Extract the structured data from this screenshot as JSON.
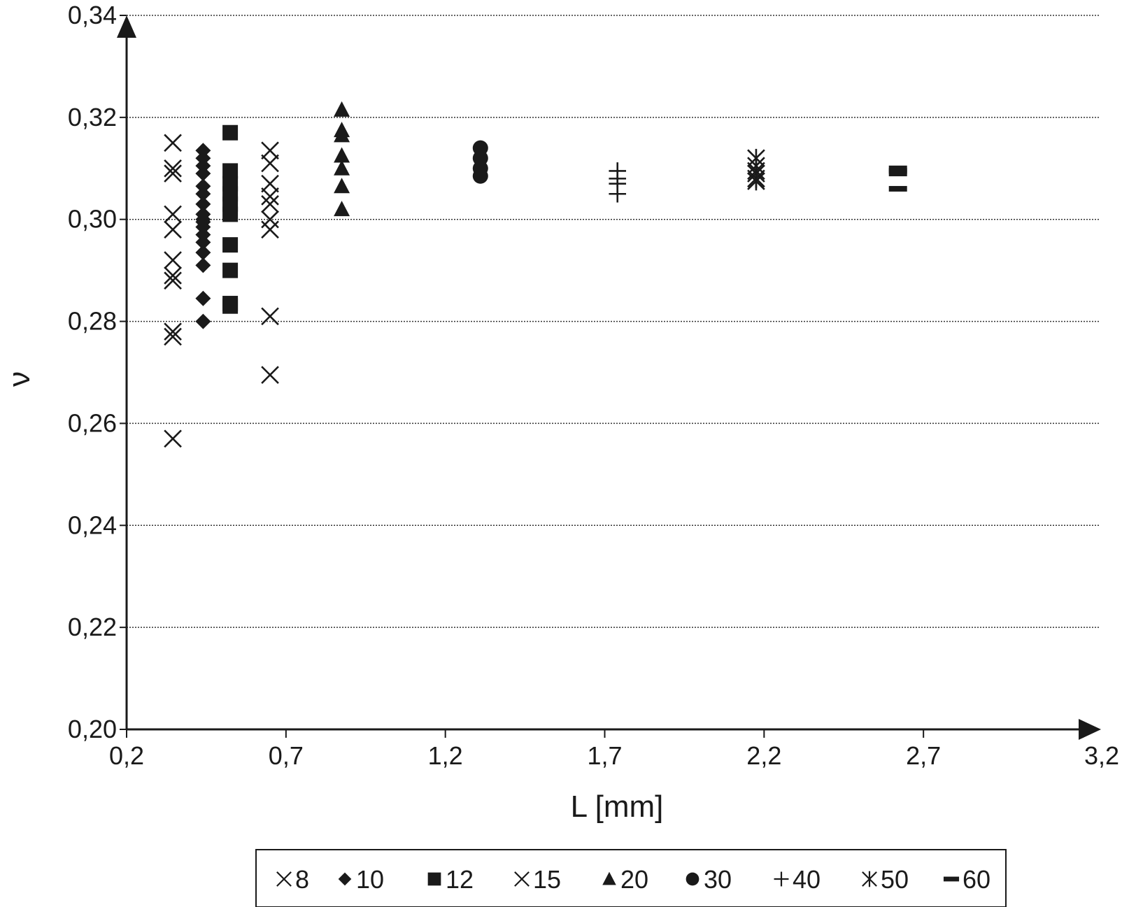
{
  "chart_data": {
    "type": "scatter",
    "title": "",
    "xlabel": "L [mm]",
    "ylabel": "ν",
    "xlim": [
      0.2,
      3.2
    ],
    "ylim": [
      0.2,
      0.34
    ],
    "x_ticks": [
      0.2,
      0.7,
      1.2,
      1.7,
      2.2,
      2.7,
      3.2
    ],
    "x_tick_labels": [
      "0,2",
      "0,7",
      "1,2",
      "1,7",
      "2,2",
      "2,7",
      "3,2"
    ],
    "y_ticks": [
      0.2,
      0.22,
      0.24,
      0.26,
      0.28,
      0.3,
      0.32,
      0.34
    ],
    "y_tick_labels": [
      "0,20",
      "0,22",
      "0,24",
      "0,26",
      "0,28",
      "0,30",
      "0,32",
      "0,34"
    ],
    "grid": "horizontal dotted lines at y ticks",
    "legend_position": "bottom",
    "series": [
      {
        "name": "8",
        "marker": "x",
        "x": [
          0.345,
          0.345,
          0.345,
          0.345,
          0.345,
          0.345,
          0.345,
          0.345,
          0.345,
          0.345,
          0.345
        ],
        "y": [
          0.315,
          0.31,
          0.309,
          0.301,
          0.298,
          0.292,
          0.289,
          0.288,
          0.278,
          0.277,
          0.257
        ]
      },
      {
        "name": "10",
        "marker": "diamond",
        "x": [
          0.44,
          0.44,
          0.44,
          0.44,
          0.44,
          0.44,
          0.44,
          0.44,
          0.44,
          0.44,
          0.44,
          0.44,
          0.44,
          0.44,
          0.44,
          0.44,
          0.44
        ],
        "y": [
          0.3135,
          0.312,
          0.3105,
          0.309,
          0.3065,
          0.305,
          0.303,
          0.301,
          0.3,
          0.2985,
          0.297,
          0.2955,
          0.2935,
          0.291,
          0.2845,
          0.28,
          0.2995
        ]
      },
      {
        "name": "12",
        "marker": "square",
        "x": [
          0.525,
          0.525,
          0.525,
          0.525,
          0.525,
          0.525,
          0.525,
          0.525,
          0.525,
          0.525
        ],
        "y": [
          0.317,
          0.3095,
          0.307,
          0.305,
          0.303,
          0.301,
          0.295,
          0.29,
          0.2835,
          0.283
        ]
      },
      {
        "name": "15",
        "marker": "x",
        "x": [
          0.65,
          0.65,
          0.65,
          0.65,
          0.65,
          0.65,
          0.65,
          0.65,
          0.65
        ],
        "y": [
          0.3135,
          0.311,
          0.307,
          0.3045,
          0.303,
          0.3,
          0.298,
          0.281,
          0.2695
        ]
      },
      {
        "name": "20",
        "marker": "triangle",
        "x": [
          0.875,
          0.875,
          0.875,
          0.875,
          0.875,
          0.875,
          0.875
        ],
        "y": [
          0.3215,
          0.3175,
          0.3165,
          0.3125,
          0.31,
          0.3065,
          0.302
        ]
      },
      {
        "name": "30",
        "marker": "circle",
        "x": [
          1.31,
          1.31,
          1.31,
          1.31
        ],
        "y": [
          0.314,
          0.312,
          0.31,
          0.3085
        ]
      },
      {
        "name": "40",
        "marker": "plus",
        "x": [
          1.74,
          1.74,
          1.74,
          1.74
        ],
        "y": [
          0.3095,
          0.308,
          0.307,
          0.305
        ]
      },
      {
        "name": "50",
        "marker": "asterisk",
        "x": [
          2.175,
          2.175,
          2.175,
          2.175,
          2.175,
          2.175
        ],
        "y": [
          0.312,
          0.3105,
          0.3095,
          0.309,
          0.308,
          0.3075
        ]
      },
      {
        "name": "60",
        "marker": "dash",
        "x": [
          2.62,
          2.62,
          2.62,
          2.62
        ],
        "y": [
          0.31,
          0.3095,
          0.309,
          0.306
        ]
      }
    ]
  }
}
